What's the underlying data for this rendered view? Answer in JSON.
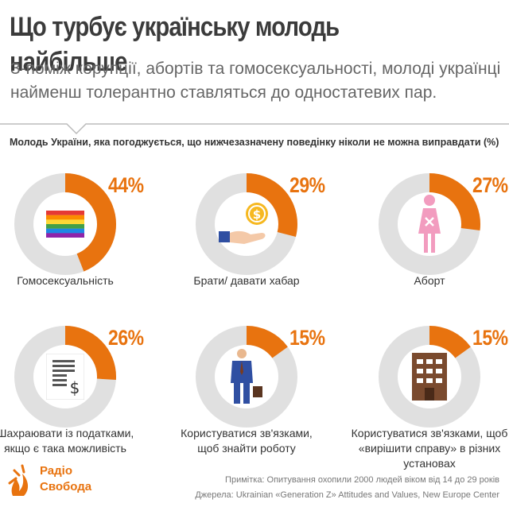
{
  "header": {
    "title": "Що турбує українську молодь найбільше",
    "subtitle": "З-поміж корупції, абортів та гомосексуальності, молоді українці найменш толерантно ставляться до одностатевих пар."
  },
  "chart_data": {
    "type": "pie",
    "title": "Молодь України, яка погоджується, що нижчезазначену поведінку ніколи не можна виправдати (%)",
    "categories": [
      "Гомосексуальність",
      "Брати/ давати хабар",
      "Аборт",
      "Шахраювати із податками, якщо є така можливість",
      "Користуватися зв'язками, щоб знайти роботу",
      "Користуватися зв'язками, щоб «вирішити справу» в різних установах"
    ],
    "values": [
      44,
      29,
      27,
      26,
      15,
      15
    ],
    "value_labels": [
      "44%",
      "29%",
      "27%",
      "26%",
      "15%",
      "15%"
    ],
    "label_lines": [
      [
        "Гомосексуальність"
      ],
      [
        "Брати/ давати хабар"
      ],
      [
        "Аборт"
      ],
      [
        "Шахраювати із податками,",
        "якщо є така можливість"
      ],
      [
        "Користуватися зв'язками,",
        "щоб знайти роботу"
      ],
      [
        "Користуватися зв'язками, щоб",
        "«вирішити справу» в різних",
        "установах"
      ]
    ],
    "icons": [
      "rainbow-flag-icon",
      "bribe-hand-icon",
      "woman-icon",
      "tax-document-icon",
      "businessman-icon",
      "building-icon"
    ],
    "ylim": [
      0,
      100
    ],
    "colors": {
      "value": "#e8730f",
      "track": "#e0e0e0"
    }
  },
  "footer": {
    "logo_line1": "Радіо",
    "logo_line2": "Свобода",
    "note": "Примітка: Опитування охопили 2000 людей віком від 14 до 29 років",
    "source": "Джерела: Ukrainian «Generation Z» Attitudes and Values, New Europe Center"
  }
}
